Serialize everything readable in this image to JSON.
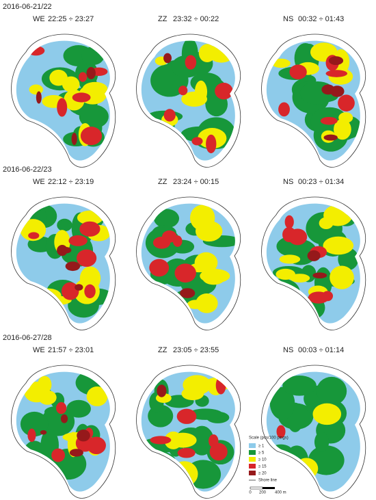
{
  "rows": [
    {
      "date": "2016-06-21/22",
      "panels": [
        {
          "transect": "WE",
          "time": "22:25 ÷ 23:27"
        },
        {
          "transect": "ZZ",
          "time": "23:32 ÷ 00:22"
        },
        {
          "transect": "NS",
          "time": "00:32 ÷ 01:43"
        }
      ]
    },
    {
      "date": "2016-06-22/23",
      "panels": [
        {
          "transect": "WE",
          "time": "22:12 ÷ 23:19"
        },
        {
          "transect": "ZZ",
          "time": "23:24 ÷ 00:15"
        },
        {
          "transect": "NS",
          "time": "00:23 ÷ 01:34"
        }
      ]
    },
    {
      "date": "2016-06-27/28",
      "panels": [
        {
          "transect": "WE",
          "time": "21:57 ÷ 23:01"
        },
        {
          "transect": "ZZ",
          "time": "23:05 ÷ 23:55"
        },
        {
          "transect": "NS",
          "time": "00:03 ÷ 01:14"
        }
      ]
    }
  ],
  "legend": {
    "title": "Scale (pcs/100 pings)",
    "classes": [
      {
        "label": "≥ 1",
        "color": "#8ecbea"
      },
      {
        "label": "≥ 5",
        "color": "#17973a"
      },
      {
        "label": "≥ 10",
        "color": "#f3ee00"
      },
      {
        "label": "≥ 15",
        "color": "#d8262a"
      },
      {
        "label": "≥ 20",
        "color": "#96191b"
      }
    ],
    "shore_line": "Shore line",
    "scale_bar": [
      "0",
      "200",
      "400 m"
    ]
  }
}
